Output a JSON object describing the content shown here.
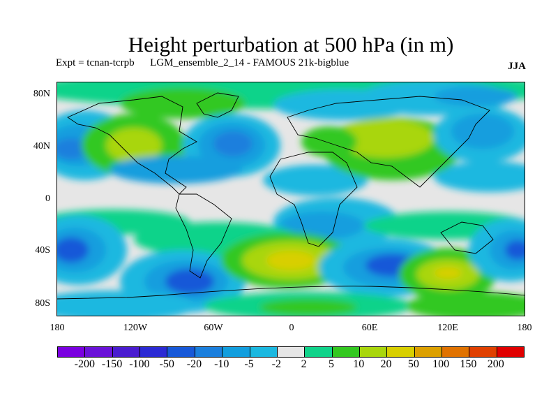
{
  "title": "Height perturbation at 500 hPa (in m)",
  "subtitle": "Expt = tcnan-tcrpb      LGM_ensemble_2_14 - FAMOUS 21k-bigblue",
  "season": "JJA",
  "lat_labels": [
    "80N",
    "40N",
    "0",
    "40S",
    "80S"
  ],
  "lon_labels": [
    "180",
    "120W",
    "60W",
    "0",
    "60E",
    "120E",
    "180"
  ],
  "colorbar": {
    "colors": [
      "#7a00e0",
      "#6a12d8",
      "#4a1cd0",
      "#2b2ad4",
      "#1758d8",
      "#1b7fdd",
      "#129ede",
      "#1bb8e0",
      "#e6e6e6",
      "#10d38a",
      "#33c820",
      "#a9d60c",
      "#d8cf00",
      "#dca000",
      "#e07200",
      "#e04000",
      "#e00000"
    ],
    "labels": [
      "-200",
      "-150",
      "-100",
      "-50",
      "-20",
      "-10",
      "-5",
      "-2",
      "2",
      "5",
      "10",
      "20",
      "50",
      "100",
      "150",
      "200"
    ]
  }
}
